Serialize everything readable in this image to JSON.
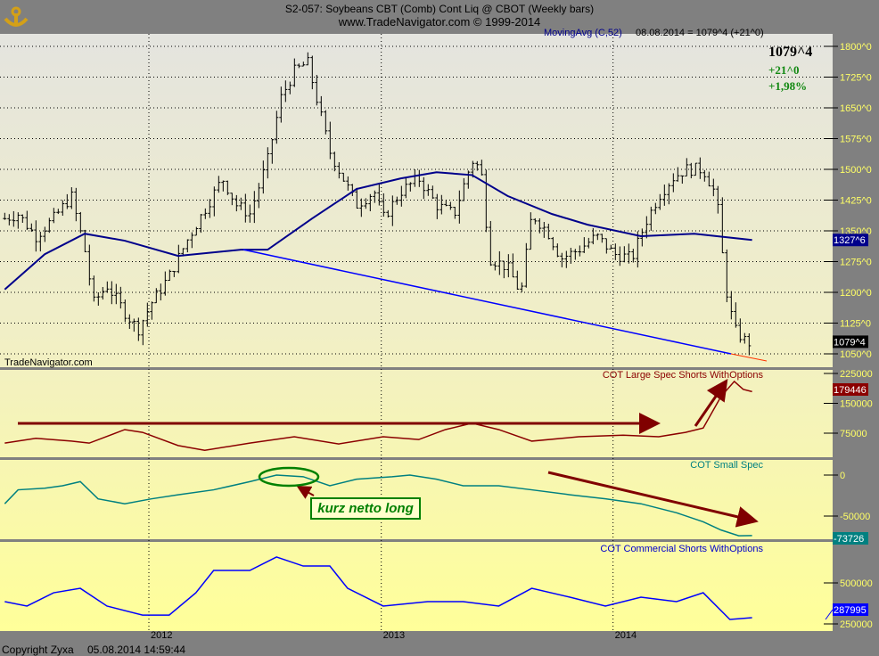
{
  "header": {
    "title": "S2-057:  Soybeans CBT (Comb) Cont Liq @ CBOT  (Weekly bars)",
    "subtitle": "www.TradeNavigator.com © 1999-2014",
    "logo": "anchor-sextant-logo"
  },
  "legend": {
    "ma_label": "MovingAvg (C,52)",
    "readout": "08.08.2014 = 1079^4 (+21^0)"
  },
  "quote": {
    "last": "1079^4",
    "change": "+21^0",
    "change_pct": "+1,98%"
  },
  "watermark": "TradeNavigator.com",
  "footer": {
    "copyright": "Copyright Zyxa",
    "timestamp": "05.08.2014 14:59:44"
  },
  "colors": {
    "price_bars": "#000000",
    "ma": "#00008b",
    "trendline": "#0000ff",
    "large_spec": "#8b0000",
    "small_spec": "#008080",
    "commercial": "#0000ff",
    "annotation_red": "#800000",
    "annotation_green": "#008000",
    "axis_labels": "#ffff66"
  },
  "annotation_text": "kurz netto long",
  "chart_data": [
    {
      "type": "line",
      "subtype": "ohlc-bars",
      "title": "S2-057:  Soybeans CBT (Comb) Cont Liq @ CBOT  (Weekly bars)",
      "x_ticks": [
        "2012",
        "2013",
        "2014"
      ],
      "y_ticks": [
        "1050^0",
        "1125^0",
        "1200^0",
        "1275^0",
        "1350^0",
        "1425^0",
        "1500^0",
        "1575^0",
        "1650^0",
        "1725^0",
        "1800^0"
      ],
      "ylim": [
        1040,
        1830
      ],
      "grid": true,
      "last_value_label": "1079^4",
      "ma_last_label": "1327^6",
      "close": [
        [
          "2011-05-19",
          1380
        ],
        [
          "2011-06-09",
          1391
        ],
        [
          "2011-07-07",
          1337
        ],
        [
          "2011-08-04",
          1380
        ],
        [
          "2011-09-01",
          1435
        ],
        [
          "2011-09-22",
          1304
        ],
        [
          "2011-10-06",
          1174
        ],
        [
          "2011-10-27",
          1217
        ],
        [
          "2011-11-24",
          1152
        ],
        [
          "2011-12-15",
          1109
        ],
        [
          "2012-01-05",
          1174
        ],
        [
          "2012-02-02",
          1239
        ],
        [
          "2012-03-01",
          1326
        ],
        [
          "2012-03-29",
          1402
        ],
        [
          "2012-04-26",
          1478
        ],
        [
          "2012-05-18",
          1413
        ],
        [
          "2012-06-08",
          1391
        ],
        [
          "2012-07-06",
          1522
        ],
        [
          "2012-07-27",
          1674
        ],
        [
          "2012-08-17",
          1739
        ],
        [
          "2012-09-07",
          1761
        ],
        [
          "2012-09-21",
          1674
        ],
        [
          "2012-10-12",
          1543
        ],
        [
          "2012-11-02",
          1478
        ],
        [
          "2012-11-23",
          1413
        ],
        [
          "2012-12-21",
          1446
        ],
        [
          "2013-01-04",
          1380
        ],
        [
          "2013-02-01",
          1446
        ],
        [
          "2013-03-01",
          1478
        ],
        [
          "2013-03-29",
          1413
        ],
        [
          "2013-04-26",
          1391
        ],
        [
          "2013-05-24",
          1522
        ],
        [
          "2013-06-07",
          1500
        ],
        [
          "2013-06-21",
          1283
        ],
        [
          "2013-07-19",
          1261
        ],
        [
          "2013-08-09",
          1196
        ],
        [
          "2013-08-26",
          1391
        ],
        [
          "2013-09-20",
          1348
        ],
        [
          "2013-10-11",
          1283
        ],
        [
          "2013-11-08",
          1304
        ],
        [
          "2013-12-06",
          1337
        ],
        [
          "2014-01-03",
          1293
        ],
        [
          "2014-01-31",
          1283
        ],
        [
          "2014-02-21",
          1370
        ],
        [
          "2014-03-14",
          1435
        ],
        [
          "2014-04-04",
          1478
        ],
        [
          "2014-04-25",
          1500
        ],
        [
          "2014-05-23",
          1500
        ],
        [
          "2014-06-13",
          1435
        ],
        [
          "2014-06-27",
          1217
        ],
        [
          "2014-07-11",
          1109
        ],
        [
          "2014-08-01",
          1076
        ],
        [
          "2014-08-08",
          1079.5
        ]
      ],
      "moving_average": {
        "name": "MovingAvg (C,52)",
        "points": [
          [
            "2011-05-19",
            1207
          ],
          [
            "2011-07-21",
            1293
          ],
          [
            "2011-09-22",
            1343
          ],
          [
            "2011-11-24",
            1326
          ],
          [
            "2012-02-16",
            1289
          ],
          [
            "2012-05-25",
            1304
          ],
          [
            "2012-07-06",
            1304
          ],
          [
            "2012-09-14",
            1380
          ],
          [
            "2012-11-23",
            1452
          ],
          [
            "2013-02-01",
            1478
          ],
          [
            "2013-03-29",
            1493
          ],
          [
            "2013-05-24",
            1486
          ],
          [
            "2013-07-19",
            1435
          ],
          [
            "2013-09-27",
            1391
          ],
          [
            "2013-11-22",
            1365
          ],
          [
            "2014-02-14",
            1337
          ],
          [
            "2014-05-09",
            1343
          ],
          [
            "2014-08-08",
            1327.75
          ]
        ]
      },
      "trendline": [
        [
          "2012-05-29",
          1304
        ],
        [
          "2014-07-25",
          1040
        ]
      ]
    },
    {
      "type": "line",
      "title": "COT Large Spec Shorts WithOptions",
      "y_ticks": [
        "75000",
        "150000",
        "225000"
      ],
      "ylim": [
        20000,
        235000
      ],
      "last_value_label": "179446",
      "points": [
        [
          "2011-05-19",
          50000
        ],
        [
          "2011-07-07",
          62000
        ],
        [
          "2011-09-01",
          55000
        ],
        [
          "2011-09-29",
          50000
        ],
        [
          "2011-11-24",
          84000
        ],
        [
          "2011-12-22",
          77000
        ],
        [
          "2012-02-16",
          44000
        ],
        [
          "2012-03-29",
          32000
        ],
        [
          "2012-06-08",
          50000
        ],
        [
          "2012-08-17",
          66000
        ],
        [
          "2012-10-26",
          48000
        ],
        [
          "2013-01-04",
          66000
        ],
        [
          "2013-03-01",
          59000
        ],
        [
          "2013-04-12",
          84000
        ],
        [
          "2013-05-24",
          100000
        ],
        [
          "2013-07-05",
          84000
        ],
        [
          "2013-08-26",
          55000
        ],
        [
          "2013-11-08",
          66000
        ],
        [
          "2014-01-17",
          70000
        ],
        [
          "2014-03-14",
          66000
        ],
        [
          "2014-04-25",
          77000
        ],
        [
          "2014-05-23",
          88000
        ],
        [
          "2014-06-20",
          167000
        ],
        [
          "2014-07-11",
          205000
        ],
        [
          "2014-07-25",
          185000
        ],
        [
          "2014-08-08",
          179446
        ]
      ]
    },
    {
      "type": "line",
      "title": "COT Small Spec",
      "y_ticks": [
        "-50000",
        "0"
      ],
      "ylim": [
        -85000,
        17000
      ],
      "last_value_label": "-73726",
      "points": [
        [
          "2011-05-19",
          -35000
        ],
        [
          "2011-06-09",
          -18000
        ],
        [
          "2011-07-21",
          -16000
        ],
        [
          "2011-08-18",
          -13000
        ],
        [
          "2011-09-15",
          -8000
        ],
        [
          "2011-10-13",
          -29000
        ],
        [
          "2011-11-24",
          -35000
        ],
        [
          "2012-01-05",
          -29000
        ],
        [
          "2012-02-16",
          -24000
        ],
        [
          "2012-04-12",
          -18000
        ],
        [
          "2012-06-08",
          -8000
        ],
        [
          "2012-07-20",
          0
        ],
        [
          "2012-08-31",
          -2000
        ],
        [
          "2012-10-12",
          -13000
        ],
        [
          "2012-11-23",
          -5000
        ],
        [
          "2013-01-18",
          -2000
        ],
        [
          "2013-02-15",
          0
        ],
        [
          "2013-03-29",
          -5000
        ],
        [
          "2013-05-10",
          -13000
        ],
        [
          "2013-07-05",
          -13000
        ],
        [
          "2013-08-26",
          -18000
        ],
        [
          "2013-10-25",
          -24000
        ],
        [
          "2013-12-20",
          -29000
        ],
        [
          "2014-02-14",
          -35000
        ],
        [
          "2014-04-11",
          -46000
        ],
        [
          "2014-05-23",
          -57000
        ],
        [
          "2014-06-20",
          -67000
        ],
        [
          "2014-07-18",
          -74000
        ],
        [
          "2014-08-08",
          -73726
        ]
      ]
    },
    {
      "type": "line",
      "title": "COT Commercial Shorts WithOptions",
      "y_ticks": [
        "250000",
        "500000"
      ],
      "ylim": [
        200000,
        750000
      ],
      "last_value_label": "287995",
      "points": [
        [
          "2011-05-19",
          386000
        ],
        [
          "2011-06-23",
          359000
        ],
        [
          "2011-08-04",
          440000
        ],
        [
          "2011-09-15",
          467000
        ],
        [
          "2011-10-27",
          359000
        ],
        [
          "2011-12-22",
          304000
        ],
        [
          "2012-02-02",
          304000
        ],
        [
          "2012-03-15",
          440000
        ],
        [
          "2012-04-12",
          576000
        ],
        [
          "2012-06-08",
          576000
        ],
        [
          "2012-07-20",
          658000
        ],
        [
          "2012-08-31",
          603000
        ],
        [
          "2012-10-12",
          603000
        ],
        [
          "2012-11-09",
          467000
        ],
        [
          "2013-01-04",
          359000
        ],
        [
          "2013-03-15",
          386000
        ],
        [
          "2013-05-10",
          386000
        ],
        [
          "2013-07-05",
          359000
        ],
        [
          "2013-08-26",
          467000
        ],
        [
          "2013-10-25",
          413000
        ],
        [
          "2013-12-20",
          359000
        ],
        [
          "2014-02-14",
          413000
        ],
        [
          "2014-04-11",
          386000
        ],
        [
          "2014-05-23",
          440000
        ],
        [
          "2014-07-04",
          277000
        ],
        [
          "2014-08-08",
          287995
        ]
      ]
    }
  ]
}
